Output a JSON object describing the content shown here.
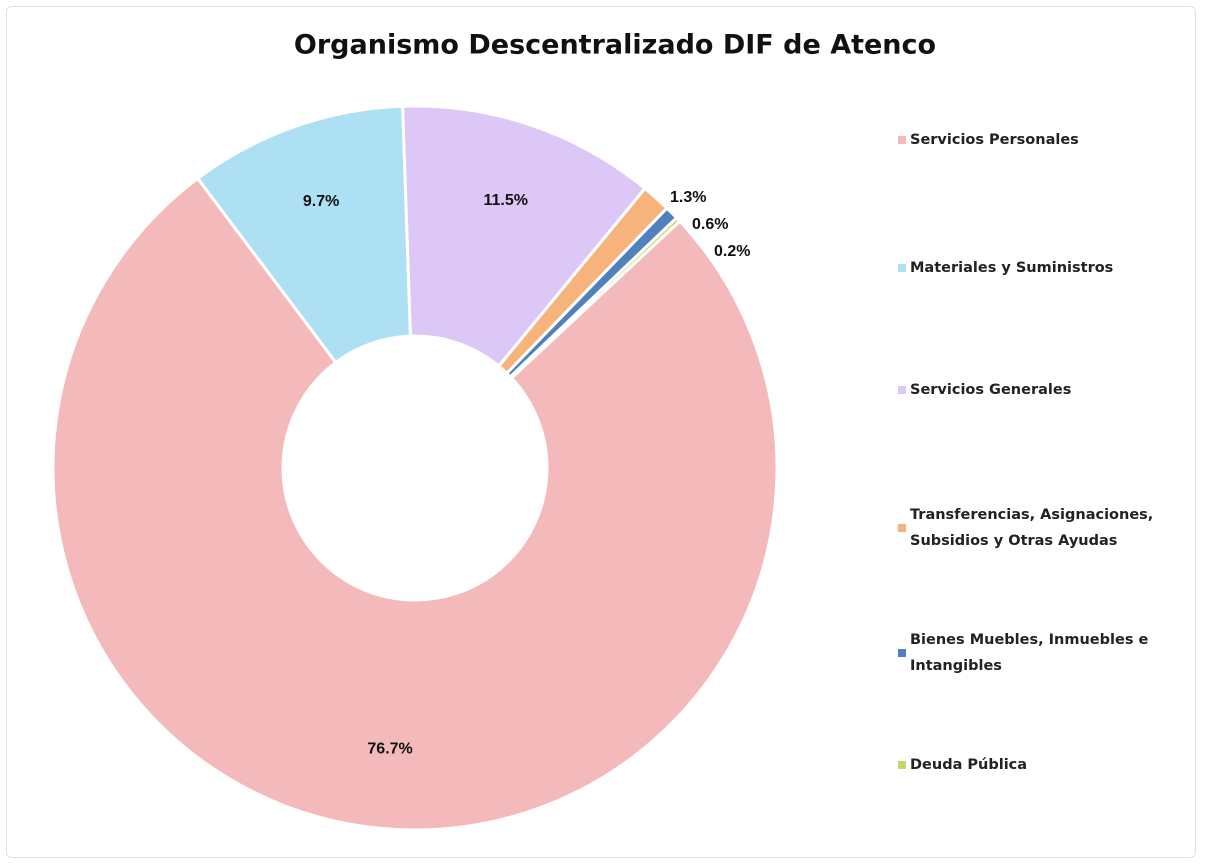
{
  "chart_data": {
    "type": "donut",
    "title": "Organismo Descentralizado DIF de Atenco",
    "categories": [
      "Servicios Personales",
      "Materiales y Suministros",
      "Servicios Generales",
      "Transferencias, Asignaciones, Subsidios y Otras Ayudas",
      "Bienes Muebles, Inmuebles e Intangibles",
      "Deuda Pública"
    ],
    "values": [
      76.7,
      9.7,
      11.5,
      1.3,
      0.6,
      0.2
    ],
    "value_labels": [
      "76.7%",
      "9.7%",
      "11.5%",
      "1.3%",
      "0.6%",
      "0.2%"
    ],
    "colors": [
      "#f4b9ba",
      "#aee0f3",
      "#dcc7f6",
      "#f6b47c",
      "#4f81bd",
      "#c4d76b"
    ],
    "legend": "right"
  }
}
